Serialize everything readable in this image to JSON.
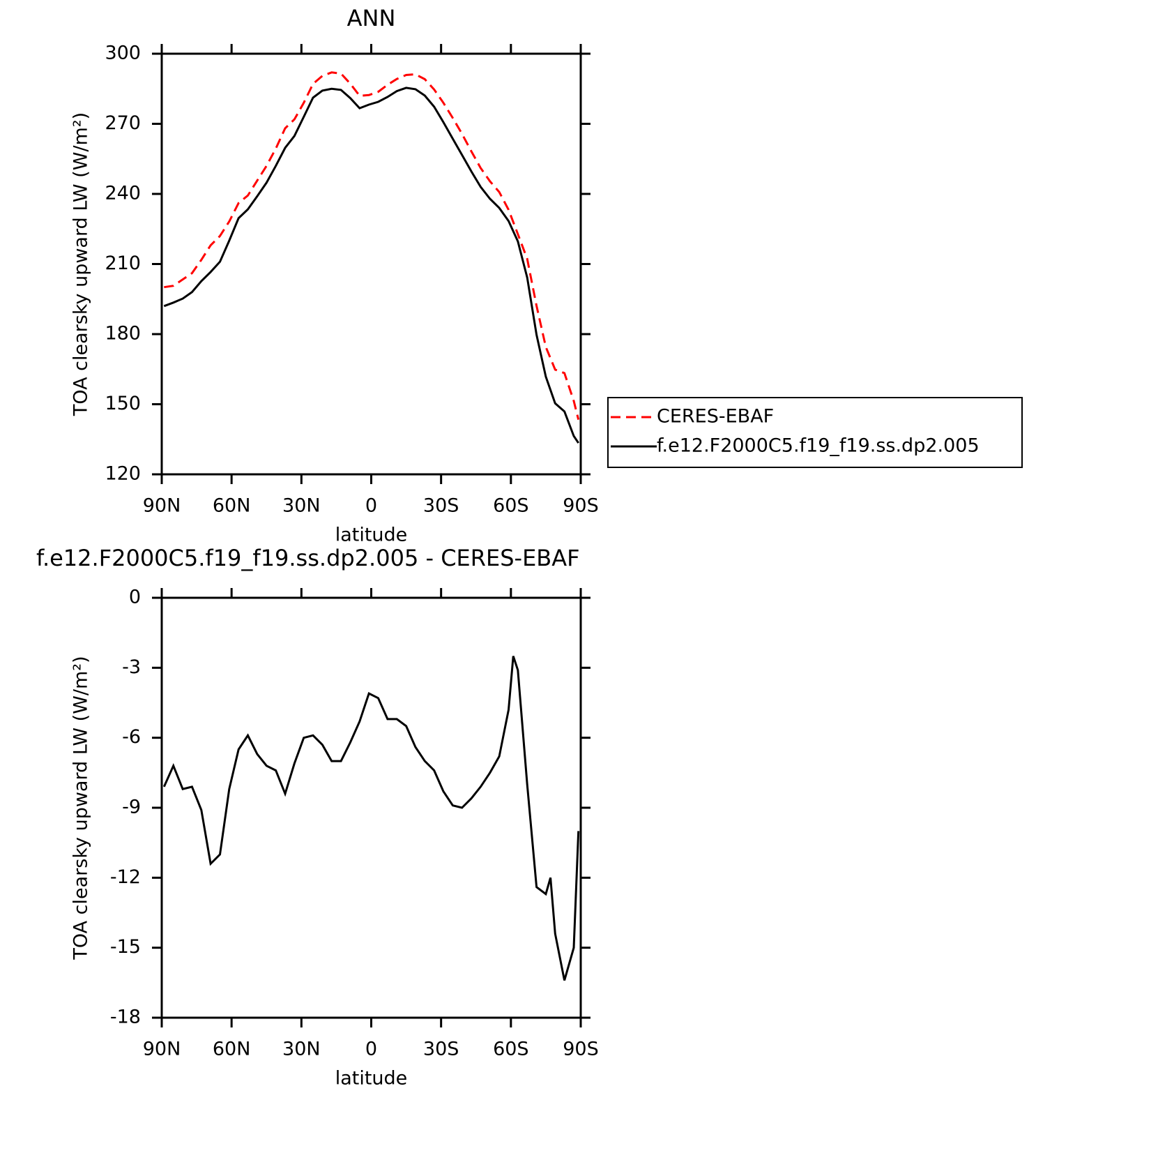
{
  "chart_data": [
    {
      "type": "line",
      "title": "ANN",
      "xlabel": "latitude",
      "ylabel": "TOA clearsky upward LW (W/m²)",
      "x": [
        89,
        85,
        81,
        77,
        73,
        69,
        65,
        61,
        57,
        53,
        49,
        45,
        41,
        37,
        33,
        29,
        25,
        21,
        17,
        13,
        9,
        5,
        1,
        -3,
        -7,
        -11,
        -15,
        -19,
        -23,
        -27,
        -31,
        -35,
        -39,
        -43,
        -47,
        -51,
        -55,
        -59,
        -63,
        -67,
        -71,
        -75,
        -79,
        -83,
        -87,
        -89
      ],
      "series": [
        {
          "name": "CERES-EBAF",
          "color": "#ff0000",
          "dashed": true,
          "values": [
            200.1,
            200.7,
            203.4,
            206.1,
            211.8,
            218,
            222,
            228.2,
            236.1,
            239.3,
            245.7,
            252,
            259.4,
            268.1,
            271.9,
            279,
            287.1,
            290.5,
            292,
            291.5,
            287.2,
            282,
            282.3,
            283.7,
            286.7,
            289.2,
            290.9,
            291.2,
            289.1,
            284.7,
            279,
            272.5,
            265.7,
            258.2,
            251.1,
            245.4,
            240.8,
            233.2,
            222.8,
            212.2,
            192.1,
            174.5,
            164.8,
            163.3,
            151.4,
            143.4
          ]
        },
        {
          "name": "f.e12.F2000C5.f19_f19.ss.dp2.005",
          "color": "#000000",
          "dashed": false,
          "values": [
            192,
            193.5,
            195.2,
            198,
            202.7,
            206.6,
            211,
            220,
            229.6,
            233.4,
            239,
            244.8,
            252,
            259.7,
            264.8,
            273,
            281.2,
            284.2,
            285,
            284.5,
            281,
            276.7,
            278.2,
            279.4,
            281.5,
            284,
            285.4,
            284.8,
            282.1,
            277.3,
            270.7,
            263.6,
            256.7,
            249.6,
            243,
            237.9,
            234,
            228.4,
            219.7,
            204.2,
            179.7,
            161.8,
            150.4,
            146.9,
            136.4,
            133.4
          ]
        }
      ],
      "xlim": [
        90,
        -90
      ],
      "xticks": [
        {
          "value": 90,
          "label": "90N"
        },
        {
          "value": 60,
          "label": "60N"
        },
        {
          "value": 30,
          "label": "30N"
        },
        0,
        {
          "value": -30,
          "label": "30S"
        },
        {
          "value": -60,
          "label": "60S"
        },
        {
          "value": -90,
          "label": "90S"
        }
      ],
      "ylim": [
        120,
        300
      ],
      "yticks": [
        120,
        150,
        180,
        210,
        240,
        270,
        300
      ],
      "legend": "right"
    },
    {
      "type": "line",
      "title": "f.e12.F2000C5.f19_f19.ss.dp2.005 - CERES-EBAF",
      "xlabel": "latitude",
      "ylabel": "TOA clearsky upward LW (W/m²)",
      "x": [
        89,
        85,
        81,
        77,
        73,
        69,
        65,
        61,
        57,
        53,
        49,
        45,
        41,
        37,
        33,
        29,
        25,
        21,
        17,
        13,
        9,
        5,
        1,
        -3,
        -7,
        -11,
        -15,
        -19,
        -23,
        -27,
        -31,
        -35,
        -39,
        -43,
        -47,
        -51,
        -55,
        -59,
        -61,
        -63,
        -67,
        -71,
        -75,
        -77,
        -79,
        -83,
        -87,
        -89
      ],
      "values": [
        -8.1,
        -7.2,
        -8.2,
        -8.1,
        -9.1,
        -11.4,
        -11,
        -8.2,
        -6.5,
        -5.9,
        -6.7,
        -7.2,
        -7.4,
        -8.4,
        -7.1,
        -6,
        -5.9,
        -6.3,
        -7,
        -7,
        -6.2,
        -5.3,
        -4.1,
        -4.3,
        -5.2,
        -5.2,
        -5.5,
        -6.4,
        -7,
        -7.4,
        -8.3,
        -8.9,
        -9,
        -8.6,
        -8.1,
        -7.5,
        -6.8,
        -4.8,
        -2.5,
        -3.1,
        -8,
        -12.4,
        -12.7,
        -12,
        -14.4,
        -16.4,
        -15,
        -10
      ],
      "color": "#000000",
      "xlim": [
        90,
        -90
      ],
      "xticks": [
        {
          "value": 90,
          "label": "90N"
        },
        {
          "value": 60,
          "label": "60N"
        },
        {
          "value": 30,
          "label": "30N"
        },
        0,
        {
          "value": -30,
          "label": "30S"
        },
        {
          "value": -60,
          "label": "60S"
        },
        {
          "value": -90,
          "label": "90S"
        }
      ],
      "ylim": [
        -18,
        0
      ],
      "yticks": [
        -18,
        -15,
        -12,
        -9,
        -6,
        -3,
        0
      ]
    }
  ]
}
